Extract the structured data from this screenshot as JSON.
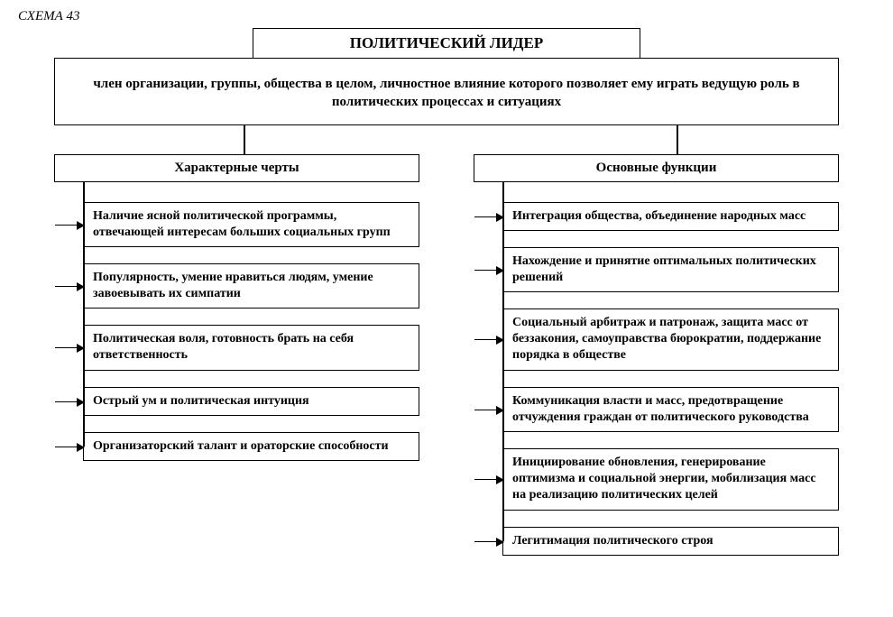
{
  "scheme_label": "СХЕМА 43",
  "title": "ПОЛИТИЧЕСКИЙ ЛИДЕР",
  "definition": "член организации, группы, общества в целом, личностное влияние которого позволяет ему играть ведущую роль в политических процессах и ситуациях",
  "left": {
    "header": "Характерные черты",
    "items": [
      "Наличие ясной политической программы, отвечающей интересам больших социальных групп",
      "Популярность, умение нравиться людям, умение завоевывать их симпатии",
      "Политическая воля, готовность брать на себя ответственность",
      "Острый ум и политическая интуиция",
      "Организаторский талант и ораторские способности"
    ]
  },
  "right": {
    "header": "Основные функции",
    "items": [
      "Интеграция общества, объединение народных масс",
      "Нахождение и принятие оптимальных политических решений",
      "Социальный арбитраж и патронаж, защита масс от беззакония, самоуправства бюрократии, поддержание порядка в обществе",
      "Коммуникация власти и масс, предотвращение отчуждения граждан от политического руководства",
      "Инициирование обновления, генерирование оптимизма и социальной энергии, мобилизация масс на реализацию политических целей",
      "Легитимация политического строя"
    ]
  },
  "style": {
    "border_color": "#000000",
    "background": "#ffffff",
    "font_family": "Times New Roman",
    "title_fontsize": 17,
    "header_fontsize": 15,
    "item_fontsize": 14
  }
}
